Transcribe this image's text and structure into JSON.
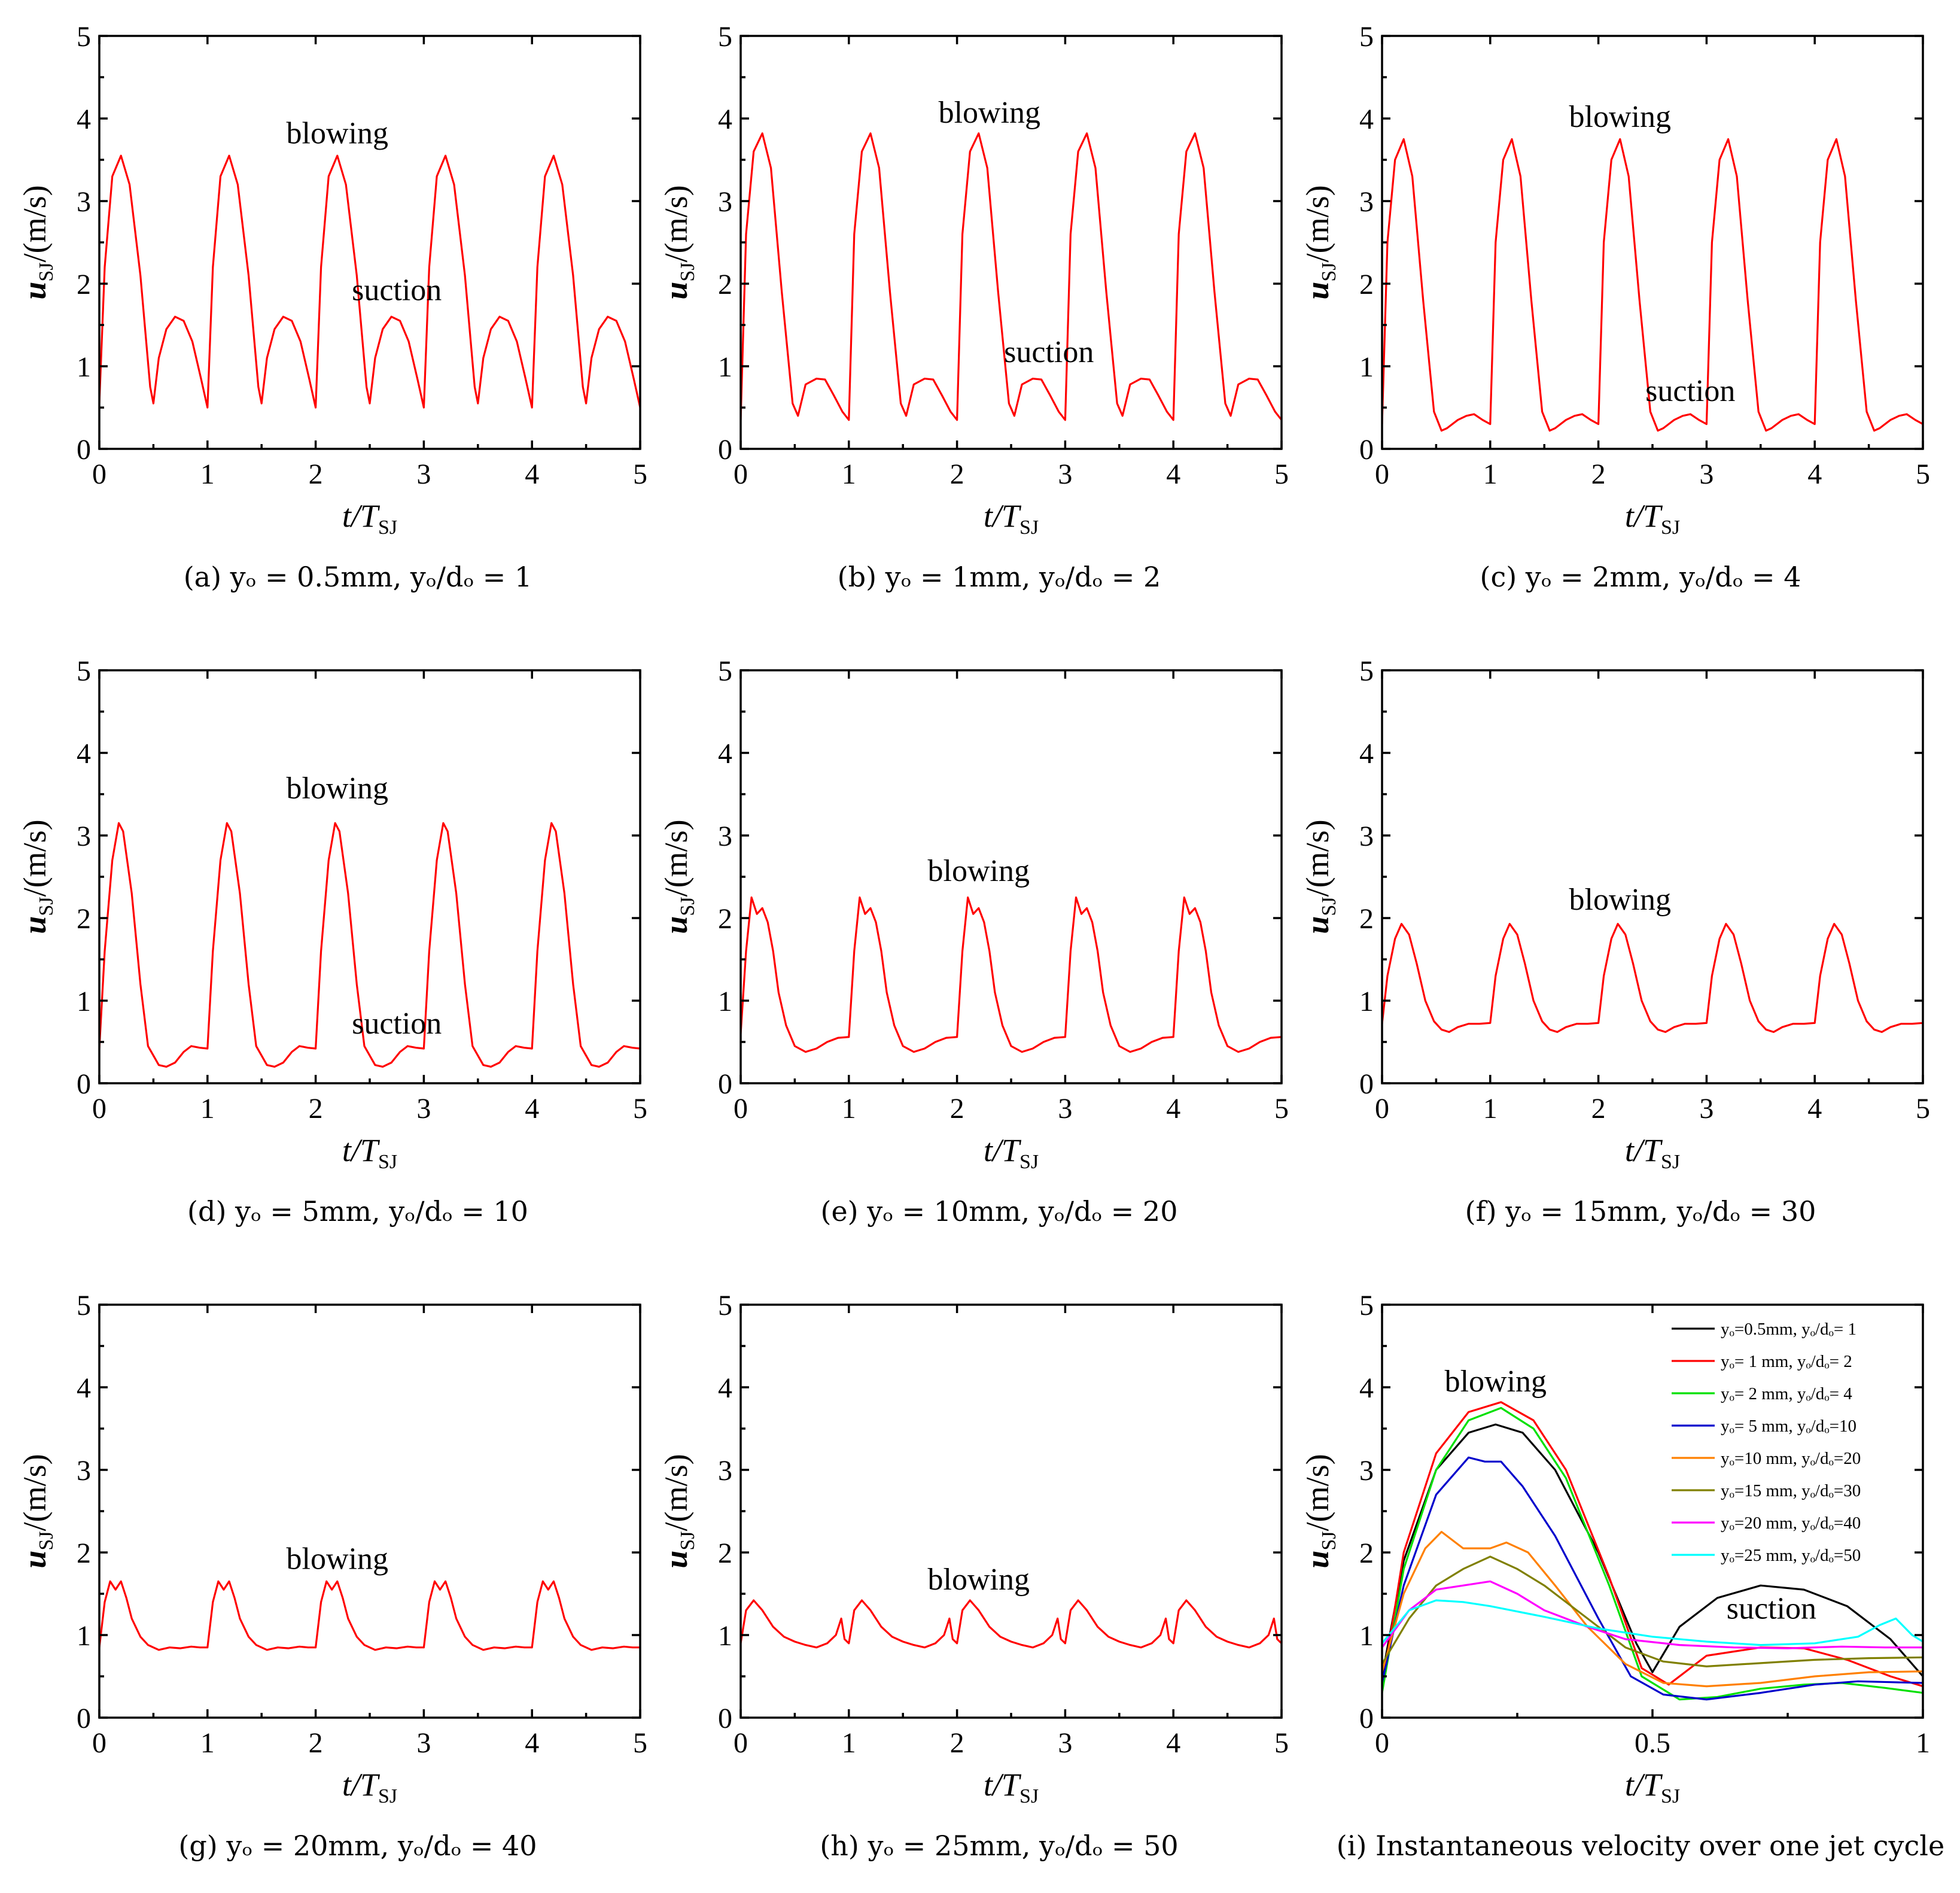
{
  "figure": {
    "panels": [
      {
        "id": "a",
        "caption": "(a) yₒ = 0.5mm, yₒ/dₒ = 1",
        "annotations": [
          "blowing",
          "suction"
        ]
      },
      {
        "id": "b",
        "caption": "(b) yₒ = 1mm, yₒ/dₒ = 2",
        "annotations": [
          "blowing",
          "suction"
        ]
      },
      {
        "id": "c",
        "caption": "(c) yₒ = 2mm, yₒ/dₒ = 4",
        "annotations": [
          "blowing",
          "suction"
        ]
      },
      {
        "id": "d",
        "caption": "(d) yₒ = 5mm, yₒ/dₒ = 10",
        "annotations": [
          "blowing",
          "suction"
        ]
      },
      {
        "id": "e",
        "caption": "(e) yₒ = 10mm, yₒ/dₒ = 20",
        "annotations": [
          "blowing"
        ]
      },
      {
        "id": "f",
        "caption": "(f) yₒ = 15mm, yₒ/dₒ = 30",
        "annotations": [
          "blowing"
        ]
      },
      {
        "id": "g",
        "caption": "(g) yₒ = 20mm, yₒ/dₒ = 40",
        "annotations": [
          "blowing"
        ]
      },
      {
        "id": "h",
        "caption": "(h) yₒ = 25mm, yₒ/dₒ = 50",
        "annotations": [
          "blowing"
        ]
      },
      {
        "id": "i",
        "caption": "(i) Instantaneous velocity over one jet cycle",
        "annotations": [
          "blowing",
          "suction"
        ]
      }
    ]
  },
  "chart_data": [
    {
      "panel": "a",
      "type": "line",
      "xlabel": "t/T",
      "xlabel_sub": "SJ",
      "ylabel": "u",
      "ylabel_sub": "SJ",
      "ylabel_unit": "/(m/s)",
      "xlim": [
        0,
        5
      ],
      "ylim": [
        0,
        5
      ],
      "xticks": [
        0,
        1,
        2,
        3,
        4,
        5
      ],
      "yticks": [
        0,
        1,
        2,
        3,
        4,
        5
      ],
      "series": [
        {
          "name": "yₒ=0.5mm",
          "color": "#ff0000",
          "cycle": {
            "x": [
              0,
              0.05,
              0.12,
              0.2,
              0.28,
              0.38,
              0.47,
              0.5,
              0.55,
              0.62,
              0.7,
              0.78,
              0.86,
              0.94,
              1.0
            ],
            "y": [
              0.55,
              2.2,
              3.3,
              3.55,
              3.2,
              2.1,
              0.75,
              0.55,
              1.1,
              1.45,
              1.6,
              1.55,
              1.3,
              0.85,
              0.5
            ]
          },
          "periods": 5
        }
      ]
    },
    {
      "panel": "b",
      "type": "line",
      "xlabel": "t/T",
      "xlabel_sub": "SJ",
      "ylabel": "u",
      "ylabel_sub": "SJ",
      "ylabel_unit": "/(m/s)",
      "xlim": [
        0,
        5
      ],
      "ylim": [
        0,
        5
      ],
      "xticks": [
        0,
        1,
        2,
        3,
        4,
        5
      ],
      "yticks": [
        0,
        1,
        2,
        3,
        4,
        5
      ],
      "series": [
        {
          "name": "yₒ=1mm",
          "color": "#ff0000",
          "cycle": {
            "x": [
              0,
              0.05,
              0.12,
              0.2,
              0.28,
              0.38,
              0.48,
              0.53,
              0.6,
              0.7,
              0.78,
              0.86,
              0.94,
              1.0
            ],
            "y": [
              0.35,
              2.6,
              3.6,
              3.82,
              3.4,
              1.9,
              0.55,
              0.4,
              0.78,
              0.85,
              0.84,
              0.65,
              0.45,
              0.35
            ]
          },
          "periods": 5
        }
      ]
    },
    {
      "panel": "c",
      "type": "line",
      "xlabel": "t/T",
      "xlabel_sub": "SJ",
      "ylabel": "u",
      "ylabel_sub": "SJ",
      "ylabel_unit": "/(m/s)",
      "xlim": [
        0,
        5
      ],
      "ylim": [
        0,
        5
      ],
      "xticks": [
        0,
        1,
        2,
        3,
        4,
        5
      ],
      "yticks": [
        0,
        1,
        2,
        3,
        4,
        5
      ],
      "series": [
        {
          "name": "yₒ=2mm",
          "color": "#ff0000",
          "cycle": {
            "x": [
              0,
              0.05,
              0.12,
              0.2,
              0.28,
              0.38,
              0.48,
              0.55,
              0.6,
              0.7,
              0.78,
              0.85,
              0.93,
              1.0
            ],
            "y": [
              0.3,
              2.5,
              3.5,
              3.75,
              3.3,
              1.8,
              0.45,
              0.22,
              0.25,
              0.35,
              0.4,
              0.42,
              0.35,
              0.3
            ]
          },
          "periods": 5
        }
      ]
    },
    {
      "panel": "d",
      "type": "line",
      "xlabel": "t/T",
      "xlabel_sub": "SJ",
      "ylabel": "u",
      "ylabel_sub": "SJ",
      "ylabel_unit": "/(m/s)",
      "xlim": [
        0,
        5
      ],
      "ylim": [
        0,
        5
      ],
      "xticks": [
        0,
        1,
        2,
        3,
        4,
        5
      ],
      "yticks": [
        0,
        1,
        2,
        3,
        4,
        5
      ],
      "series": [
        {
          "name": "yₒ=5mm",
          "color": "#ff0000",
          "cycle": {
            "x": [
              0,
              0.05,
              0.12,
              0.18,
              0.22,
              0.3,
              0.38,
              0.45,
              0.55,
              0.62,
              0.7,
              0.78,
              0.85,
              0.93,
              1.0
            ],
            "y": [
              0.42,
              1.6,
              2.7,
              3.15,
              3.05,
              2.3,
              1.2,
              0.45,
              0.22,
              0.2,
              0.25,
              0.38,
              0.45,
              0.43,
              0.42
            ]
          },
          "periods": 5
        }
      ]
    },
    {
      "panel": "e",
      "type": "line",
      "xlabel": "t/T",
      "xlabel_sub": "SJ",
      "ylabel": "u",
      "ylabel_sub": "SJ",
      "ylabel_unit": "/(m/s)",
      "xlim": [
        0,
        5
      ],
      "ylim": [
        0,
        5
      ],
      "xticks": [
        0,
        1,
        2,
        3,
        4,
        5
      ],
      "yticks": [
        0,
        1,
        2,
        3,
        4,
        5
      ],
      "series": [
        {
          "name": "yₒ=10mm",
          "color": "#ff0000",
          "cycle": {
            "x": [
              0,
              0.05,
              0.1,
              0.15,
              0.2,
              0.25,
              0.3,
              0.35,
              0.42,
              0.5,
              0.6,
              0.7,
              0.8,
              0.9,
              1.0
            ],
            "y": [
              0.6,
              1.6,
              2.25,
              2.05,
              2.12,
              1.95,
              1.6,
              1.1,
              0.7,
              0.45,
              0.38,
              0.42,
              0.5,
              0.55,
              0.56
            ]
          },
          "periods": 5
        }
      ]
    },
    {
      "panel": "f",
      "type": "line",
      "xlabel": "t/T",
      "xlabel_sub": "SJ",
      "ylabel": "u",
      "ylabel_sub": "SJ",
      "ylabel_unit": "/(m/s)",
      "xlim": [
        0,
        5
      ],
      "ylim": [
        0,
        5
      ],
      "xticks": [
        0,
        1,
        2,
        3,
        4,
        5
      ],
      "yticks": [
        0,
        1,
        2,
        3,
        4,
        5
      ],
      "series": [
        {
          "name": "yₒ=15mm",
          "color": "#ff0000",
          "cycle": {
            "x": [
              0,
              0.05,
              0.12,
              0.18,
              0.25,
              0.32,
              0.4,
              0.48,
              0.55,
              0.62,
              0.7,
              0.8,
              0.9,
              1.0
            ],
            "y": [
              0.72,
              1.3,
              1.75,
              1.93,
              1.8,
              1.45,
              1.0,
              0.75,
              0.65,
              0.62,
              0.68,
              0.72,
              0.72,
              0.73
            ]
          },
          "periods": 5
        }
      ]
    },
    {
      "panel": "g",
      "type": "line",
      "xlabel": "t/T",
      "xlabel_sub": "SJ",
      "ylabel": "u",
      "ylabel_sub": "SJ",
      "ylabel_unit": "/(m/s)",
      "xlim": [
        0,
        5
      ],
      "ylim": [
        0,
        5
      ],
      "xticks": [
        0,
        1,
        2,
        3,
        4,
        5
      ],
      "yticks": [
        0,
        1,
        2,
        3,
        4,
        5
      ],
      "series": [
        {
          "name": "yₒ=20mm",
          "color": "#ff0000",
          "cycle": {
            "x": [
              0,
              0.05,
              0.1,
              0.15,
              0.2,
              0.25,
              0.3,
              0.38,
              0.45,
              0.55,
              0.65,
              0.75,
              0.85,
              0.93,
              1.0
            ],
            "y": [
              0.85,
              1.4,
              1.65,
              1.55,
              1.65,
              1.45,
              1.2,
              0.98,
              0.88,
              0.82,
              0.85,
              0.84,
              0.86,
              0.85,
              0.85
            ]
          },
          "periods": 5
        }
      ]
    },
    {
      "panel": "h",
      "type": "line",
      "xlabel": "t/T",
      "xlabel_sub": "SJ",
      "ylabel": "u",
      "ylabel_sub": "SJ",
      "ylabel_unit": "/(m/s)",
      "xlim": [
        0,
        5
      ],
      "ylim": [
        0,
        5
      ],
      "xticks": [
        0,
        1,
        2,
        3,
        4,
        5
      ],
      "yticks": [
        0,
        1,
        2,
        3,
        4,
        5
      ],
      "series": [
        {
          "name": "yₒ=25mm",
          "color": "#ff0000",
          "cycle": {
            "x": [
              0,
              0.05,
              0.12,
              0.2,
              0.3,
              0.4,
              0.5,
              0.6,
              0.7,
              0.8,
              0.88,
              0.93,
              0.96,
              1.0
            ],
            "y": [
              0.9,
              1.3,
              1.42,
              1.3,
              1.1,
              0.98,
              0.92,
              0.88,
              0.85,
              0.9,
              1.0,
              1.2,
              0.95,
              0.9
            ]
          },
          "periods": 5
        }
      ]
    },
    {
      "panel": "i",
      "type": "line",
      "xlabel": "t/T",
      "xlabel_sub": "SJ",
      "ylabel": "u",
      "ylabel_sub": "SJ",
      "ylabel_unit": "/(m/s)",
      "xlim": [
        0,
        1
      ],
      "ylim": [
        0,
        5
      ],
      "xticks": [
        0,
        0.5,
        1
      ],
      "yticks": [
        0,
        1,
        2,
        3,
        4,
        5
      ],
      "legend_position": "top-right",
      "series": [
        {
          "name": "yₒ=0.5mm, yₒ/dₒ= 1",
          "color": "#000000",
          "x": [
            0,
            0.04,
            0.1,
            0.16,
            0.21,
            0.26,
            0.32,
            0.4,
            0.47,
            0.5,
            0.55,
            0.62,
            0.7,
            0.78,
            0.86,
            0.94,
            1.0
          ],
          "y": [
            0.5,
            1.9,
            3.0,
            3.45,
            3.55,
            3.45,
            3.0,
            2.0,
            0.9,
            0.55,
            1.1,
            1.45,
            1.6,
            1.55,
            1.35,
            0.95,
            0.5
          ]
        },
        {
          "name": "yₒ= 1 mm, yₒ/dₒ= 2",
          "color": "#ff0000",
          "x": [
            0,
            0.04,
            0.1,
            0.16,
            0.22,
            0.28,
            0.34,
            0.42,
            0.48,
            0.53,
            0.6,
            0.7,
            0.78,
            0.86,
            0.94,
            1.0
          ],
          "y": [
            0.35,
            2.0,
            3.2,
            3.7,
            3.82,
            3.6,
            3.0,
            1.7,
            0.6,
            0.4,
            0.75,
            0.85,
            0.84,
            0.7,
            0.5,
            0.38
          ]
        },
        {
          "name": "yₒ= 2 mm, yₒ/dₒ= 4",
          "color": "#00e000",
          "x": [
            0,
            0.04,
            0.1,
            0.16,
            0.22,
            0.28,
            0.34,
            0.42,
            0.48,
            0.55,
            0.62,
            0.7,
            0.78,
            0.85,
            0.93,
            1.0
          ],
          "y": [
            0.3,
            1.8,
            3.0,
            3.6,
            3.75,
            3.5,
            2.9,
            1.6,
            0.5,
            0.22,
            0.25,
            0.35,
            0.4,
            0.42,
            0.36,
            0.3
          ]
        },
        {
          "name": "yₒ= 5 mm, yₒ/dₒ=10",
          "color": "#0000cc",
          "x": [
            0,
            0.04,
            0.1,
            0.16,
            0.19,
            0.22,
            0.26,
            0.32,
            0.4,
            0.46,
            0.52,
            0.6,
            0.7,
            0.8,
            0.88,
            0.94,
            1.0
          ],
          "y": [
            0.42,
            1.6,
            2.7,
            3.15,
            3.1,
            3.1,
            2.8,
            2.2,
            1.2,
            0.5,
            0.28,
            0.22,
            0.3,
            0.4,
            0.44,
            0.43,
            0.42
          ]
        },
        {
          "name": "yₒ=10 mm, yₒ/dₒ=20",
          "color": "#ff8000",
          "x": [
            0,
            0.04,
            0.08,
            0.11,
            0.15,
            0.2,
            0.23,
            0.27,
            0.32,
            0.38,
            0.45,
            0.52,
            0.6,
            0.7,
            0.8,
            0.9,
            1.0
          ],
          "y": [
            0.55,
            1.5,
            2.05,
            2.25,
            2.05,
            2.05,
            2.12,
            2.0,
            1.6,
            1.1,
            0.65,
            0.42,
            0.38,
            0.42,
            0.5,
            0.55,
            0.56
          ]
        },
        {
          "name": "yₒ=15 mm, yₒ/dₒ=30",
          "color": "#808000",
          "x": [
            0,
            0.05,
            0.1,
            0.15,
            0.2,
            0.25,
            0.3,
            0.38,
            0.45,
            0.52,
            0.6,
            0.7,
            0.8,
            0.9,
            1.0
          ],
          "y": [
            0.65,
            1.2,
            1.6,
            1.8,
            1.95,
            1.8,
            1.6,
            1.2,
            0.85,
            0.68,
            0.62,
            0.66,
            0.7,
            0.72,
            0.73
          ]
        },
        {
          "name": "yₒ=20 mm, yₒ/dₒ=40",
          "color": "#ff00ff",
          "x": [
            0,
            0.05,
            0.1,
            0.15,
            0.2,
            0.25,
            0.3,
            0.38,
            0.45,
            0.55,
            0.65,
            0.75,
            0.85,
            0.93,
            1.0
          ],
          "y": [
            0.85,
            1.3,
            1.55,
            1.6,
            1.65,
            1.5,
            1.3,
            1.1,
            0.95,
            0.88,
            0.85,
            0.84,
            0.86,
            0.85,
            0.85
          ]
        },
        {
          "name": "yₒ=25 mm, yₒ/dₒ=50",
          "color": "#00ffff",
          "x": [
            0,
            0.05,
            0.1,
            0.15,
            0.2,
            0.3,
            0.4,
            0.5,
            0.6,
            0.7,
            0.8,
            0.88,
            0.92,
            0.95,
            0.98,
            1.0
          ],
          "y": [
            0.9,
            1.3,
            1.42,
            1.4,
            1.35,
            1.22,
            1.08,
            0.98,
            0.92,
            0.88,
            0.9,
            0.98,
            1.12,
            1.2,
            1.0,
            0.92
          ]
        }
      ]
    }
  ]
}
